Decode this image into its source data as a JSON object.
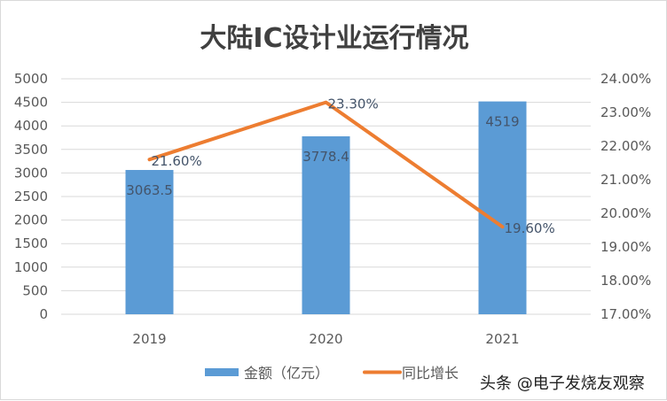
{
  "chart_data": {
    "type": "bar+line",
    "title": "大陆IC设计业运行情况",
    "categories": [
      "2019",
      "2020",
      "2021"
    ],
    "series": [
      {
        "name": "金额（亿元）",
        "type": "bar",
        "axis": "left",
        "values": [
          3063.5,
          3778.4,
          4519
        ],
        "labels": [
          "3063.5",
          "3778.4",
          "4519"
        ],
        "color": "#5b9bd5"
      },
      {
        "name": "同比增长",
        "type": "line",
        "axis": "right",
        "values": [
          21.6,
          23.3,
          19.6
        ],
        "labels": [
          "21.60%",
          "23.30%",
          "19.60%"
        ],
        "color": "#ed7d31"
      }
    ],
    "left_axis": {
      "range": [
        0,
        5000
      ],
      "ticks": [
        "0",
        "500",
        "1000",
        "1500",
        "2000",
        "2500",
        "3000",
        "3500",
        "4000",
        "4500",
        "5000"
      ]
    },
    "right_axis": {
      "range": [
        17,
        24
      ],
      "ticks": [
        "17.00%",
        "18.00%",
        "19.00%",
        "20.00%",
        "21.00%",
        "22.00%",
        "23.00%",
        "24.00%"
      ]
    },
    "grid": true,
    "legend_position": "bottom"
  },
  "watermark": "头条 @电子发烧友观察"
}
